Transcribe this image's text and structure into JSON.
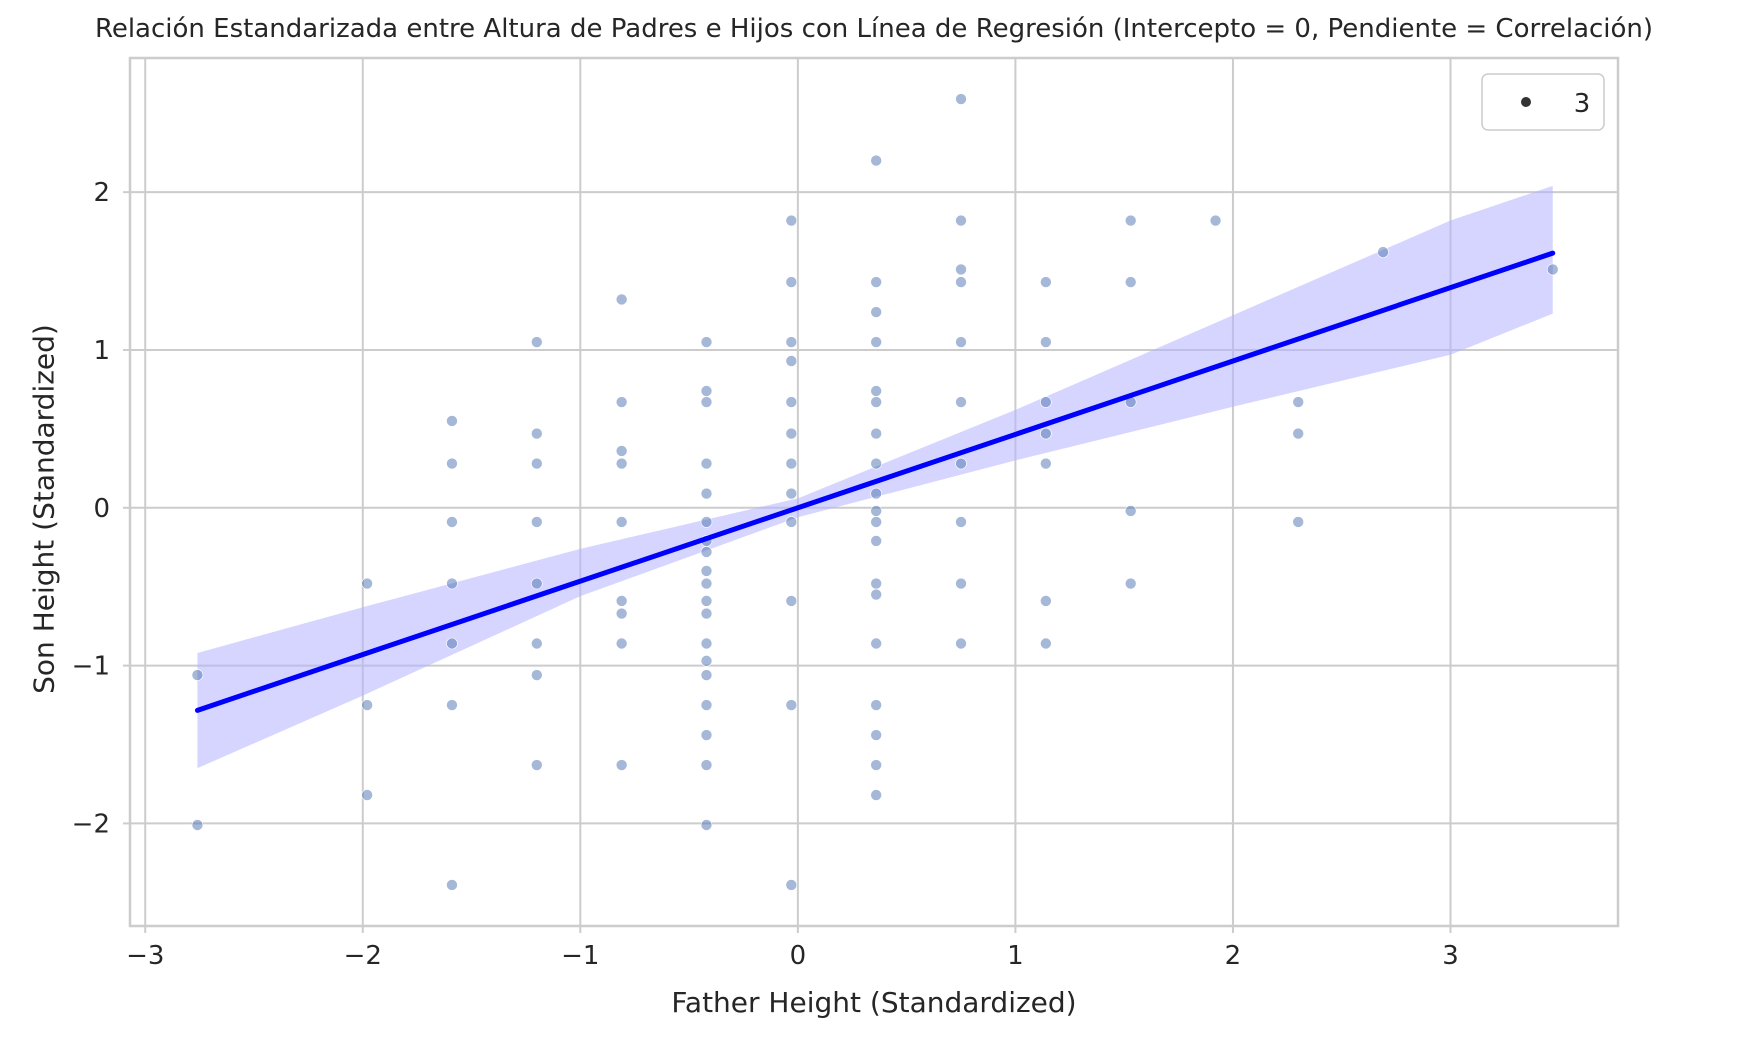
{
  "chart_data": {
    "type": "scatter",
    "title": "Relación Estandarizada entre Altura de Padres e Hijos con Línea de Regresión (Intercepto = 0, Pendiente = Correlación)",
    "xlabel": "Father Height (Standardized)",
    "ylabel": "Son Height (Standardized)",
    "xlim": [
      -3.07,
      3.77
    ],
    "ylim": [
      -2.65,
      2.85
    ],
    "x_ticks": [
      -3,
      -2,
      -1,
      0,
      1,
      2,
      3
    ],
    "y_ticks": [
      -2,
      -1,
      0,
      1,
      2
    ],
    "x_tick_labels": [
      "−3",
      "−2",
      "−1",
      "0",
      "1",
      "2",
      "3"
    ],
    "y_tick_labels": [
      "−2",
      "−1",
      "0",
      "1",
      "2"
    ],
    "grid": true,
    "legend": {
      "placement": "top-right",
      "entries": [
        "3"
      ]
    },
    "colors": {
      "points": "#4c72b0",
      "regression_line": "#0000ff",
      "confidence_band": "#b3b3ff",
      "grid": "#cccccc"
    },
    "points": [
      [
        -2.76,
        -1.06
      ],
      [
        -2.76,
        -2.01
      ],
      [
        -1.98,
        -0.48
      ],
      [
        -1.98,
        -1.25
      ],
      [
        -1.98,
        -1.82
      ],
      [
        -1.59,
        0.55
      ],
      [
        -1.59,
        0.28
      ],
      [
        -1.59,
        -0.09
      ],
      [
        -1.59,
        -0.48
      ],
      [
        -1.59,
        -0.86
      ],
      [
        -1.59,
        -1.25
      ],
      [
        -1.59,
        -2.39
      ],
      [
        -1.2,
        1.05
      ],
      [
        -1.2,
        0.47
      ],
      [
        -1.2,
        0.28
      ],
      [
        -1.2,
        -0.09
      ],
      [
        -1.2,
        -0.48
      ],
      [
        -1.2,
        -0.86
      ],
      [
        -1.2,
        -1.06
      ],
      [
        -1.2,
        -1.63
      ],
      [
        -0.81,
        1.32
      ],
      [
        -0.81,
        0.67
      ],
      [
        -0.81,
        0.36
      ],
      [
        -0.81,
        0.28
      ],
      [
        -0.81,
        -0.09
      ],
      [
        -0.81,
        -0.59
      ],
      [
        -0.81,
        -0.67
      ],
      [
        -0.81,
        -0.86
      ],
      [
        -0.81,
        -1.63
      ],
      [
        -0.42,
        1.05
      ],
      [
        -0.42,
        0.74
      ],
      [
        -0.42,
        0.67
      ],
      [
        -0.42,
        0.28
      ],
      [
        -0.42,
        0.09
      ],
      [
        -0.42,
        -0.09
      ],
      [
        -0.42,
        -0.21
      ],
      [
        -0.42,
        -0.28
      ],
      [
        -0.42,
        -0.4
      ],
      [
        -0.42,
        -0.48
      ],
      [
        -0.42,
        -0.59
      ],
      [
        -0.42,
        -0.67
      ],
      [
        -0.42,
        -0.86
      ],
      [
        -0.42,
        -0.97
      ],
      [
        -0.42,
        -1.06
      ],
      [
        -0.42,
        -1.25
      ],
      [
        -0.42,
        -1.44
      ],
      [
        -0.42,
        -1.63
      ],
      [
        -0.42,
        -2.01
      ],
      [
        -0.03,
        1.82
      ],
      [
        -0.03,
        1.43
      ],
      [
        -0.03,
        1.05
      ],
      [
        -0.03,
        0.93
      ],
      [
        -0.03,
        0.67
      ],
      [
        -0.03,
        0.47
      ],
      [
        -0.03,
        0.28
      ],
      [
        -0.03,
        0.09
      ],
      [
        -0.03,
        -0.09
      ],
      [
        -0.03,
        -0.59
      ],
      [
        -0.03,
        -1.25
      ],
      [
        -0.03,
        -2.39
      ],
      [
        0.36,
        2.2
      ],
      [
        0.36,
        1.43
      ],
      [
        0.36,
        1.24
      ],
      [
        0.36,
        1.05
      ],
      [
        0.36,
        0.74
      ],
      [
        0.36,
        0.67
      ],
      [
        0.36,
        0.47
      ],
      [
        0.36,
        0.28
      ],
      [
        0.36,
        0.09
      ],
      [
        0.36,
        -0.02
      ],
      [
        0.36,
        -0.09
      ],
      [
        0.36,
        -0.21
      ],
      [
        0.36,
        -0.48
      ],
      [
        0.36,
        -0.55
      ],
      [
        0.36,
        -0.86
      ],
      [
        0.36,
        -1.25
      ],
      [
        0.36,
        -1.44
      ],
      [
        0.36,
        -1.63
      ],
      [
        0.36,
        -1.82
      ],
      [
        0.75,
        2.59
      ],
      [
        0.75,
        1.82
      ],
      [
        0.75,
        1.51
      ],
      [
        0.75,
        1.43
      ],
      [
        0.75,
        1.05
      ],
      [
        0.75,
        0.67
      ],
      [
        0.75,
        0.28
      ],
      [
        0.75,
        -0.09
      ],
      [
        0.75,
        -0.48
      ],
      [
        0.75,
        -0.86
      ],
      [
        1.14,
        1.43
      ],
      [
        1.14,
        1.05
      ],
      [
        1.14,
        0.67
      ],
      [
        1.14,
        0.47
      ],
      [
        1.14,
        0.28
      ],
      [
        1.14,
        -0.59
      ],
      [
        1.14,
        -0.86
      ],
      [
        1.53,
        1.82
      ],
      [
        1.53,
        1.43
      ],
      [
        1.53,
        0.67
      ],
      [
        1.53,
        -0.02
      ],
      [
        1.53,
        -0.48
      ],
      [
        1.92,
        1.82
      ],
      [
        2.3,
        0.67
      ],
      [
        2.3,
        0.47
      ],
      [
        2.3,
        -0.09
      ],
      [
        2.69,
        1.62
      ],
      [
        3.47,
        1.51
      ]
    ],
    "regression": {
      "intercept": 0,
      "slope": 0.465,
      "x_range": [
        -2.76,
        3.47
      ]
    },
    "confidence_band": [
      [
        -2.76,
        -1.65,
        -0.92
      ],
      [
        -2.0,
        -1.19,
        -0.63
      ],
      [
        -1.0,
        -0.56,
        -0.26
      ],
      [
        0.0,
        -0.06,
        0.06
      ],
      [
        1.0,
        0.3,
        0.62
      ],
      [
        2.0,
        0.64,
        1.22
      ],
      [
        3.0,
        0.97,
        1.82
      ],
      [
        3.47,
        1.23,
        2.04
      ]
    ]
  }
}
